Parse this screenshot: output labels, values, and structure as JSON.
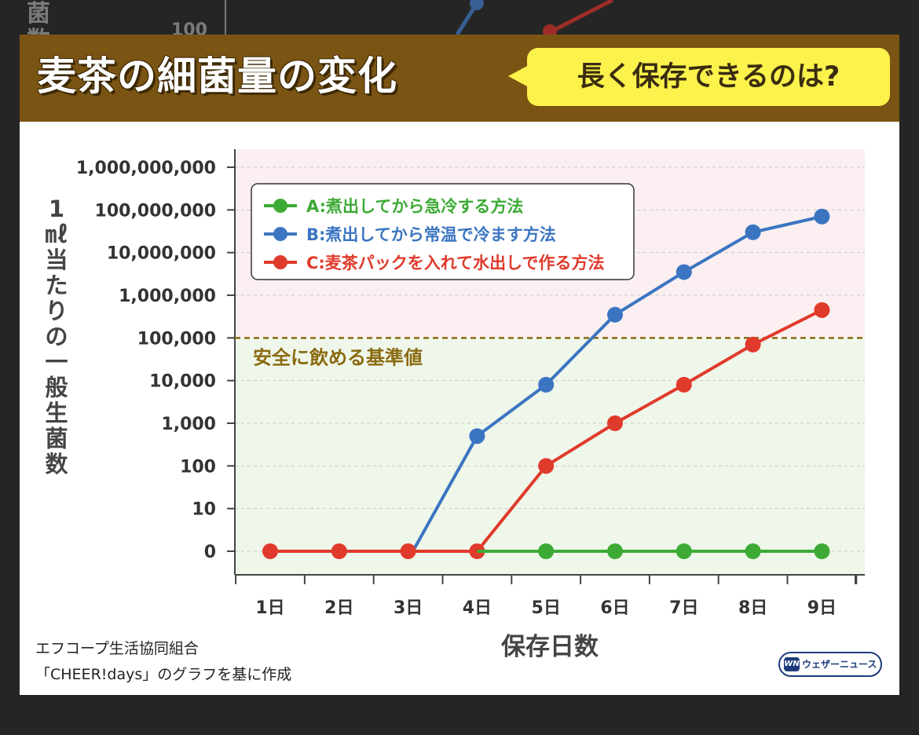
{
  "background_peek": {
    "glyph_1": "菌",
    "glyph_2": "数",
    "tick": "100"
  },
  "header": {
    "title": "麦茶の細菌量の変化",
    "subtitle": "長く保存できるのは?",
    "band_color": "#7a5413",
    "bubble_color": "#fcf24c"
  },
  "chart_data": {
    "type": "line",
    "title": "麦茶の細菌量の変化",
    "subtitle": "長く保存できるのは?",
    "xlabel": "保存日数",
    "ylabel": "1㎖当たりの一般生菌数",
    "y_scale": "log",
    "categories": [
      "1日",
      "2日",
      "3日",
      "4日",
      "5日",
      "6日",
      "7日",
      "8日",
      "9日"
    ],
    "y_ticks": [
      "1,000,000,000",
      "100,000,000",
      "10,000,000",
      "1,000,000",
      "100,000",
      "10,000",
      "1,000",
      "100",
      "10",
      "0"
    ],
    "y_tick_values": [
      1000000000,
      100000000,
      10000000,
      1000000,
      100000,
      10000,
      1000,
      100,
      10,
      0
    ],
    "series": [
      {
        "name": "A:煮出してから急冷する方法",
        "color": "#3caa35",
        "values": [
          0,
          0,
          0,
          0,
          0,
          0,
          0,
          0,
          0
        ]
      },
      {
        "name": "B:煮出してから常温で冷ます方法",
        "color": "#3b75c2",
        "values": [
          0,
          0,
          0,
          500,
          8000,
          350000,
          3500000,
          30000000,
          70000000
        ],
        "note_zero_crossing": "line rises from 0 between day 3 and day 4 (start at about day 3.1)"
      },
      {
        "name": "C:麦茶パックを入れて水出しで作る方法",
        "color": "#e03a2c",
        "values": [
          0,
          0,
          0,
          0,
          100,
          1000,
          8000,
          70000,
          450000
        ]
      }
    ],
    "reference_line": {
      "label": "安全に飲める基準値",
      "value": 100000,
      "color": "#8a6a10"
    },
    "zones": {
      "above_reference_color": "#fbeff1",
      "below_reference_color": "#eff7ea"
    },
    "legend_position": "top-left",
    "grid": "horizontal-dashed"
  },
  "footer": {
    "source_line_1": "エフコープ生活協同組合",
    "source_line_2": "「CHEER!days」のグラフを基に作成",
    "logo_mark": "WN",
    "logo_text": "ウェザーニュース"
  }
}
